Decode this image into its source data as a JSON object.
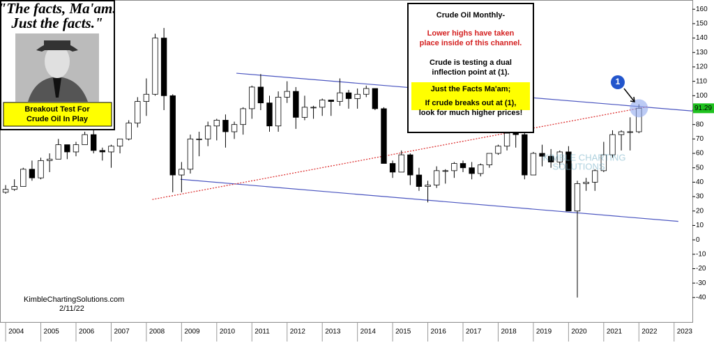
{
  "chart_data": {
    "type": "candlestick",
    "title": "Crude Oil Monthly-",
    "notes_red": [
      "Lower highs have taken",
      "place inside of this channel."
    ],
    "notes": [
      "Crude is testing a dual",
      "inflection point at (1)."
    ],
    "notes_highlight": [
      "Just the Facts Ma'am;",
      "If crude breaks out at (1),",
      "look for much higher prices!"
    ],
    "quote": [
      "\"The facts, Ma'am.",
      "Just the facts.\""
    ],
    "badge": [
      "Breakout Test For",
      "Crude Oil In Play"
    ],
    "source": "KimbleChartingSolutions.com",
    "date": "2/11/22",
    "watermark": [
      "KIMBLE CHARTING",
      "SOLUTIONS"
    ],
    "point_label": "1",
    "x": [
      2004,
      2004.25,
      2004.5,
      2004.75,
      2005,
      2005.25,
      2005.5,
      2005.75,
      2006,
      2006.25,
      2006.5,
      2006.75,
      2007,
      2007.25,
      2007.5,
      2007.75,
      2008,
      2008.25,
      2008.5,
      2008.75,
      2009,
      2009.25,
      2009.5,
      2009.75,
      2010,
      2010.25,
      2010.5,
      2010.75,
      2011,
      2011.25,
      2011.5,
      2011.75,
      2012,
      2012.25,
      2012.5,
      2012.75,
      2013,
      2013.25,
      2013.5,
      2013.75,
      2014,
      2014.25,
      2014.5,
      2014.75,
      2015,
      2015.25,
      2015.5,
      2015.75,
      2016,
      2016.25,
      2016.5,
      2016.75,
      2017,
      2017.25,
      2017.5,
      2017.75,
      2018,
      2018.25,
      2018.5,
      2018.75,
      2019,
      2019.25,
      2019.5,
      2019.75,
      2020,
      2020.25,
      2020.5,
      2020.75,
      2021,
      2021.25,
      2021.5,
      2021.75,
      2022
    ],
    "open": [
      33,
      35,
      37,
      49,
      43,
      55,
      56,
      66,
      61,
      66,
      73,
      62,
      61,
      65,
      70,
      81,
      96,
      101,
      140,
      100,
      45,
      49,
      70,
      70,
      79,
      83,
      75,
      80,
      91,
      106,
      95,
      79,
      99,
      103,
      85,
      92,
      92,
      97,
      96,
      102,
      98,
      101,
      105,
      91,
      53,
      47,
      59,
      45,
      37,
      38,
      48,
      48,
      53,
      50,
      46,
      52,
      60,
      65,
      74,
      73,
      45,
      60,
      58,
      54,
      61,
      20,
      39,
      40,
      48,
      59,
      73,
      75,
      75
    ],
    "high": [
      38,
      42,
      50,
      55,
      57,
      60,
      70,
      66,
      68,
      75,
      78,
      64,
      66,
      70,
      83,
      99,
      112,
      143,
      147,
      101,
      54,
      73,
      75,
      82,
      84,
      87,
      82,
      92,
      107,
      115,
      100,
      103,
      110,
      106,
      100,
      93,
      98,
      97,
      112,
      104,
      105,
      107,
      105,
      92,
      55,
      62,
      60,
      50,
      41,
      51,
      49,
      54,
      55,
      54,
      53,
      60,
      66,
      73,
      75,
      76,
      61,
      66,
      63,
      62,
      65,
      41,
      43,
      49,
      68,
      76,
      76,
      85,
      94
    ],
    "low": [
      32,
      34,
      38,
      41,
      42,
      47,
      56,
      56,
      58,
      66,
      60,
      55,
      50,
      60,
      69,
      78,
      86,
      100,
      90,
      33,
      33,
      46,
      58,
      65,
      69,
      64,
      70,
      73,
      84,
      90,
      75,
      75,
      95,
      77,
      83,
      84,
      86,
      86,
      93,
      91,
      91,
      99,
      90,
      54,
      43,
      47,
      38,
      34,
      26,
      36,
      39,
      43,
      47,
      42,
      44,
      50,
      59,
      62,
      64,
      42,
      45,
      51,
      50,
      50,
      20,
      -40,
      34,
      34,
      47,
      57,
      62,
      62,
      74
    ],
    "close": [
      35,
      37,
      49,
      43,
      55,
      56,
      66,
      61,
      66,
      73,
      62,
      61,
      65,
      70,
      81,
      96,
      101,
      140,
      100,
      45,
      49,
      70,
      70,
      79,
      83,
      75,
      80,
      91,
      106,
      95,
      79,
      99,
      103,
      85,
      92,
      92,
      97,
      96,
      102,
      98,
      101,
      105,
      91,
      53,
      47,
      59,
      45,
      37,
      38,
      48,
      48,
      53,
      50,
      46,
      52,
      60,
      65,
      74,
      73,
      45,
      60,
      58,
      54,
      61,
      20,
      39,
      40,
      48,
      59,
      73,
      75,
      75,
      91.29
    ],
    "up_color": "#ffffff",
    "down_color": "#000000",
    "trendlines": [
      {
        "x": [
          2010.56,
          2023.52
        ],
        "y": [
          115.6,
          89.4
        ],
        "color": "#4a55c0",
        "dash": false
      },
      {
        "x": [
          2008.97,
          2023.12
        ],
        "y": [
          42,
          12.8
        ],
        "color": "#4a55c0",
        "dash": false
      },
      {
        "x": [
          2008.17,
          2022.23
        ],
        "y": [
          28,
          92.3
        ],
        "color": "#d33",
        "dash": true
      }
    ],
    "xlim": [
      2003.84,
      2023.52
    ],
    "xticks": [
      2004,
      2005,
      2006,
      2007,
      2008,
      2009,
      2010,
      2011,
      2012,
      2013,
      2014,
      2015,
      2016,
      2017,
      2018,
      2019,
      2020,
      2021,
      2022,
      2023
    ],
    "ylim": [
      -57,
      166.4
    ],
    "yticks": [
      -40,
      -30,
      -20,
      -10,
      0,
      10,
      20,
      30,
      40,
      50,
      60,
      70,
      80,
      90,
      100,
      110,
      120,
      130,
      140,
      150,
      160
    ]
  }
}
